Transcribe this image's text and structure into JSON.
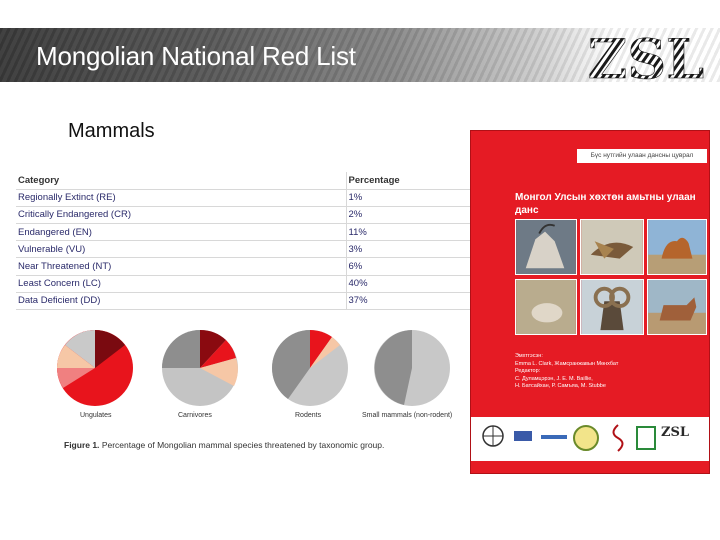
{
  "slide": {
    "title": "Mongolian National Red List",
    "subtitle": "Mammals"
  },
  "logo": {
    "text": "ZSL"
  },
  "table": {
    "headers": [
      "Category",
      "Percentage"
    ],
    "rows": [
      {
        "category": "Regionally Extinct (RE)",
        "percentage": "1%"
      },
      {
        "category": "Critically Endangered (CR)",
        "percentage": "2%"
      },
      {
        "category": "Endangered (EN)",
        "percentage": "11%"
      },
      {
        "category": "Vulnerable (VU)",
        "percentage": "3%"
      },
      {
        "category": "Near Threatened (NT)",
        "percentage": "6%"
      },
      {
        "category": "Least Concern (LC)",
        "percentage": "40%"
      },
      {
        "category": "Data Deficient (DD)",
        "percentage": "37%"
      }
    ]
  },
  "figure": {
    "caption_label": "Figure 1.",
    "caption_text": "Percentage of Mongolian mammal species threatened by taxonomic group.",
    "groups": [
      "Ungulates",
      "Carnivores",
      "Rodents",
      "Small mammals (non-rodent)"
    ]
  },
  "book": {
    "series": "Бүс нутгийн улаан дансны цуврал",
    "title": "Монгол Улсын хөхтөн амьтны улаан данс",
    "compilers_label": "Эмхтгэсэн:",
    "compilers": "Emma L. Clark, Жамсранжавын Мөнхбат",
    "editors_label": "Редактор:",
    "editors_line1": "С. Дуламцэрэн, J. E. M. Baillie,",
    "editors_line2": "Н. Батсайхан, Р. Самъяа, М. Stubbe",
    "strip_logo": "ZSL"
  },
  "colors": {
    "book_red": "#e51b24",
    "header_dark": "#3a3a3a",
    "table_text": "#2a2a6a"
  }
}
